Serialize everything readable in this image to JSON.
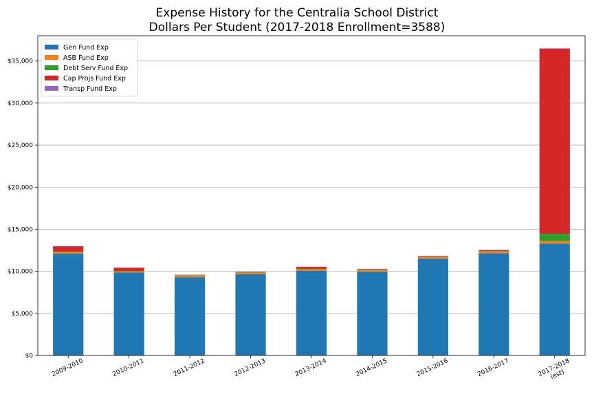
{
  "chart_data": {
    "type": "bar",
    "stacked": true,
    "title": "Expense History for the Centralia School District",
    "subtitle": "Dollars Per Student (2017-2018 Enrollment=3588)",
    "categories": [
      "2009-2010",
      "2010-2011",
      "2011-2012",
      "2012-2013",
      "2013-2014",
      "2014-2015",
      "2015-2016",
      "2016-2017",
      "2017-2018\n(est)"
    ],
    "ylim": [
      0,
      38000
    ],
    "yticks": [
      0,
      5000,
      10000,
      15000,
      20000,
      25000,
      30000,
      35000
    ],
    "ytick_labels": [
      "$0",
      "$5,000",
      "$10,000",
      "$15,000",
      "$20,000",
      "$25,000",
      "$30,000",
      "$35,000"
    ],
    "grid": "horizontal",
    "legend_position": "top-left",
    "series": [
      {
        "name": "Gen Fund Exp",
        "color": "#1f77b4",
        "values": [
          12100,
          9850,
          9300,
          9650,
          10050,
          9950,
          11500,
          12150,
          13300
        ]
      },
      {
        "name": "ASB Fund Exp",
        "color": "#ff7f0e",
        "values": [
          200,
          150,
          200,
          200,
          200,
          200,
          200,
          200,
          300
        ]
      },
      {
        "name": "Debt Serv Fund Exp",
        "color": "#2ca02c",
        "values": [
          50,
          50,
          50,
          50,
          50,
          50,
          50,
          50,
          850
        ]
      },
      {
        "name": "Cap Projs Fund Exp",
        "color": "#d62728",
        "values": [
          600,
          350,
          0,
          0,
          200,
          50,
          50,
          100,
          22000
        ]
      },
      {
        "name": "Transp Fund Exp",
        "color": "#9467bd",
        "values": [
          50,
          50,
          50,
          50,
          50,
          50,
          50,
          50,
          50
        ]
      }
    ]
  }
}
